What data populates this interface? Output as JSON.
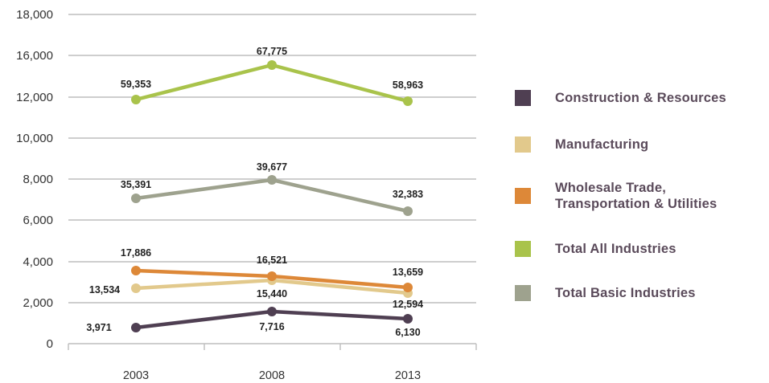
{
  "chart_data": {
    "type": "line",
    "title": "",
    "xlabel": "",
    "ylabel": "",
    "categories": [
      "2003",
      "2008",
      "2013"
    ],
    "ylim": [
      0,
      18000
    ],
    "yticks": [
      0,
      2000,
      4000,
      6000,
      8000,
      10000,
      12000,
      16000,
      18000
    ],
    "ytick_labels": [
      "0",
      "2,000",
      "4,000",
      "6,000",
      "8,000",
      "10,000",
      "12,000",
      "16,000",
      "18,000"
    ],
    "grid": true,
    "legend_position": "right",
    "series": [
      {
        "name": "Construction & Resources",
        "color": "#4f3f52",
        "labels": [
          "3,971",
          "7,716",
          "6,130"
        ]
      },
      {
        "name": "Manufacturing",
        "color": "#e2c98c",
        "labels": [
          "13,534",
          "15,440",
          "12,594"
        ]
      },
      {
        "name": "Wholesale Trade,\nTransportation & Utilities",
        "color": "#dd8838",
        "labels": [
          "17,886",
          "16,521",
          "13,659"
        ]
      },
      {
        "name": "Total All Industries",
        "color": "#a9c34b",
        "labels": [
          "59,353",
          "67,775",
          "58,963"
        ]
      },
      {
        "name": "Total Basic Industries",
        "color": "#9ea28e",
        "labels": [
          "35,391",
          "39,677",
          "32,383"
        ]
      }
    ]
  }
}
